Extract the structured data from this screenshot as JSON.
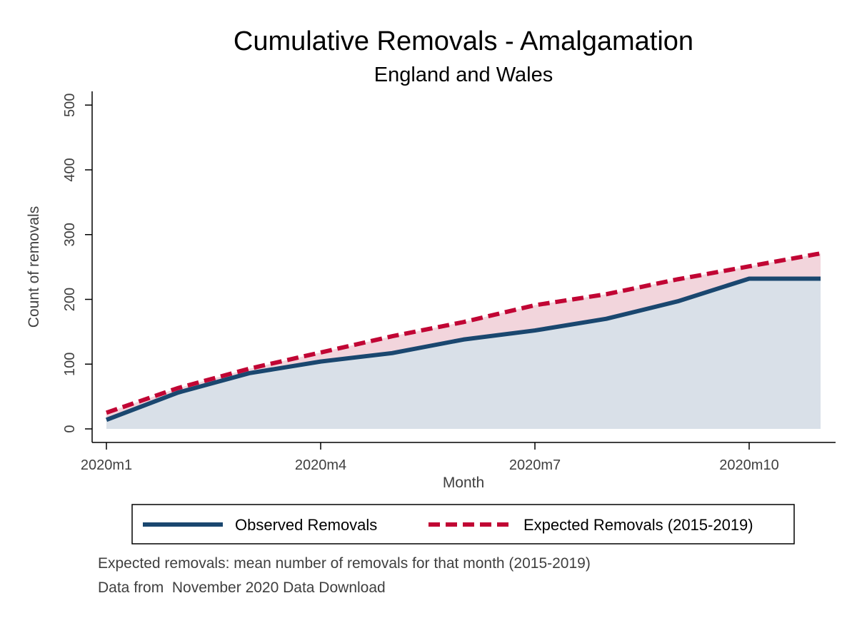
{
  "chart_data": {
    "type": "area",
    "title": "Cumulative Removals - Amalgamation",
    "subtitle": "England and Wales",
    "xlabel": "Month",
    "ylabel": "Count of removals",
    "x": [
      "2020m1",
      "2020m2",
      "2020m3",
      "2020m4",
      "2020m5",
      "2020m6",
      "2020m7",
      "2020m8",
      "2020m9",
      "2020m10",
      "2020m11"
    ],
    "x_ticks": [
      "2020m1",
      "2020m4",
      "2020m7",
      "2020m10"
    ],
    "y_ticks": [
      0,
      100,
      200,
      300,
      400,
      500
    ],
    "ylim": [
      0,
      500
    ],
    "grid": false,
    "legend_position": "bottom",
    "series": [
      {
        "name": "Observed Removals",
        "style": "solid",
        "color": "#1a476f",
        "fill": "#d9e0e8",
        "values": [
          14,
          56,
          86,
          104,
          117,
          138,
          152,
          170,
          197,
          232,
          232
        ]
      },
      {
        "name": "Expected Removals (2015-2019)",
        "style": "dashed",
        "color": "#c10534",
        "fill": "#f2d5dc",
        "values": [
          25,
          63,
          93,
          118,
          143,
          165,
          191,
          208,
          231,
          251,
          271
        ]
      }
    ],
    "notes": [
      "Expected removals: mean number of removals for that month (2015-2019)",
      "Data from  November 2020 Data Download"
    ]
  }
}
